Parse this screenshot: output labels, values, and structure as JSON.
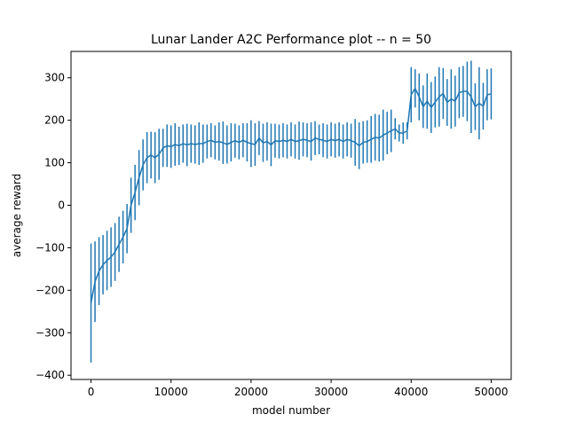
{
  "chart_data": {
    "type": "line",
    "title": "Lunar Lander A2C Performance plot -- n = 50",
    "xlabel": "model number",
    "ylabel": "average reward",
    "xlim": [
      -2500,
      52500
    ],
    "ylim": [
      -410,
      362
    ],
    "xticks": [
      0,
      10000,
      20000,
      30000,
      40000,
      50000
    ],
    "yticks": [
      -400,
      -300,
      -200,
      -100,
      0,
      100,
      200,
      300
    ],
    "grid": false,
    "line_color": "#1f77b4",
    "error_bars": true,
    "series": [
      {
        "x": [
          0,
          500,
          1000,
          1500,
          2000,
          2500,
          3000,
          3500,
          4000,
          4500,
          5000,
          5500,
          6000,
          6500,
          7000,
          7500,
          8000,
          8500,
          9000,
          9500,
          10000,
          10500,
          11000,
          11500,
          12000,
          12500,
          13000,
          13500,
          14000,
          14500,
          15000,
          15500,
          16000,
          16500,
          17000,
          17500,
          18000,
          18500,
          19000,
          19500,
          20000,
          20500,
          21000,
          21500,
          22000,
          22500,
          23000,
          23500,
          24000,
          24500,
          25000,
          25500,
          26000,
          26500,
          27000,
          27500,
          28000,
          28500,
          29000,
          29500,
          30000,
          30500,
          31000,
          31500,
          32000,
          32500,
          33000,
          33500,
          34000,
          34500,
          35000,
          35500,
          36000,
          36500,
          37000,
          37500,
          38000,
          38500,
          39000,
          39500,
          40000,
          40500,
          41000,
          41500,
          42000,
          42500,
          43000,
          43500,
          44000,
          44500,
          45000,
          45500,
          46000,
          46500,
          47000,
          47500,
          48000,
          48500,
          49000,
          49500,
          50000
        ],
        "y": [
          -230,
          -180,
          -155,
          -140,
          -130,
          -122,
          -110,
          -92,
          -75,
          -55,
          0,
          30,
          65,
          95,
          112,
          118,
          112,
          120,
          135,
          140,
          138,
          143,
          140,
          145,
          142,
          145,
          143,
          145,
          145,
          150,
          153,
          148,
          150,
          147,
          143,
          148,
          152,
          148,
          153,
          148,
          145,
          143,
          158,
          147,
          150,
          142,
          152,
          150,
          153,
          150,
          155,
          150,
          152,
          155,
          153,
          150,
          158,
          155,
          153,
          150,
          155,
          152,
          155,
          150,
          155,
          152,
          148,
          140,
          148,
          150,
          155,
          160,
          158,
          165,
          170,
          175,
          180,
          170,
          170,
          175,
          260,
          275,
          255,
          232,
          245,
          230,
          243,
          255,
          263,
          242,
          250,
          245,
          265,
          268,
          268,
          255,
          232,
          240,
          233,
          260,
          262
        ],
        "yerr": [
          140,
          95,
          80,
          70,
          70,
          70,
          68,
          65,
          62,
          58,
          65,
          65,
          65,
          60,
          60,
          55,
          60,
          60,
          45,
          50,
          50,
          50,
          45,
          45,
          50,
          45,
          45,
          50,
          45,
          40,
          40,
          40,
          45,
          50,
          45,
          45,
          40,
          40,
          40,
          45,
          55,
          50,
          40,
          45,
          45,
          50,
          40,
          40,
          40,
          40,
          40,
          40,
          45,
          40,
          40,
          45,
          40,
          35,
          40,
          40,
          40,
          40,
          40,
          40,
          40,
          40,
          55,
          55,
          50,
          50,
          55,
          55,
          55,
          60,
          50,
          50,
          25,
          20,
          25,
          20,
          65,
          45,
          55,
          50,
          65,
          60,
          60,
          70,
          60,
          55,
          70,
          60,
          60,
          60,
          70,
          85,
          55,
          85,
          55,
          60,
          60
        ]
      }
    ]
  }
}
